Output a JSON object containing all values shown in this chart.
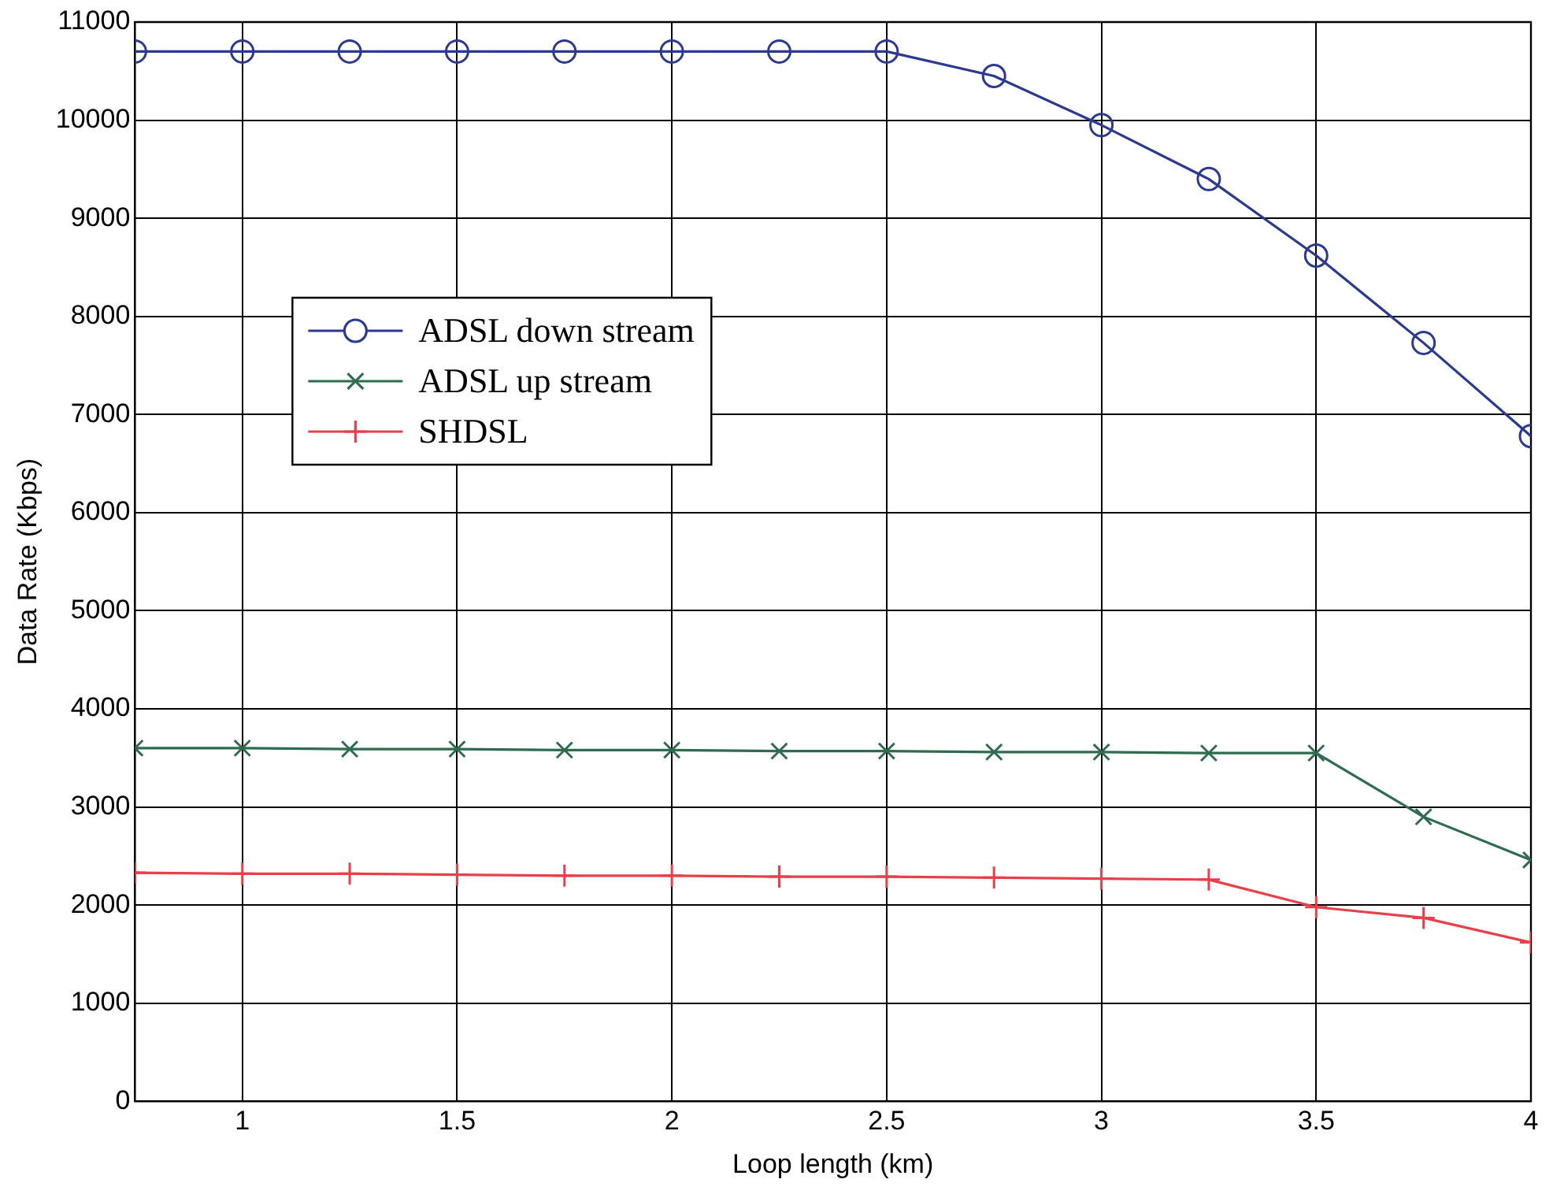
{
  "chart_data": {
    "type": "line",
    "xlabel": "Loop length (km)",
    "ylabel": "Data Rate (Kbps)",
    "x": [
      0.75,
      1,
      1.25,
      1.5,
      1.75,
      2,
      2.25,
      2.5,
      2.75,
      3,
      3.25,
      3.5,
      3.75,
      4
    ],
    "series": [
      {
        "name": "ADSL down stream",
        "color": "#2b3990",
        "marker": "circle",
        "values": [
          10700,
          10700,
          10700,
          10700,
          10700,
          10700,
          10700,
          10700,
          10450,
          9950,
          9400,
          8620,
          7730,
          6780
        ]
      },
      {
        "name": "ADSL up stream",
        "color": "#2e6b4f",
        "marker": "cross",
        "values": [
          3600,
          3600,
          3590,
          3590,
          3580,
          3580,
          3570,
          3570,
          3560,
          3560,
          3550,
          3550,
          2900,
          2460
        ]
      },
      {
        "name": "SHDSL",
        "color": "#e8404a",
        "marker": "plus",
        "values": [
          2330,
          2320,
          2320,
          2310,
          2300,
          2300,
          2290,
          2290,
          2280,
          2270,
          2260,
          1980,
          1870,
          1620
        ]
      }
    ],
    "xlim": [
      0.75,
      4
    ],
    "xticks": [
      1,
      1.5,
      2,
      2.5,
      3,
      3.5,
      4
    ],
    "ylim": [
      0,
      11000
    ],
    "yticks": [
      0,
      1000,
      2000,
      3000,
      4000,
      5000,
      6000,
      7000,
      8000,
      9000,
      10000,
      11000
    ],
    "grid": true,
    "legend": "left",
    "line_style": "solid"
  }
}
